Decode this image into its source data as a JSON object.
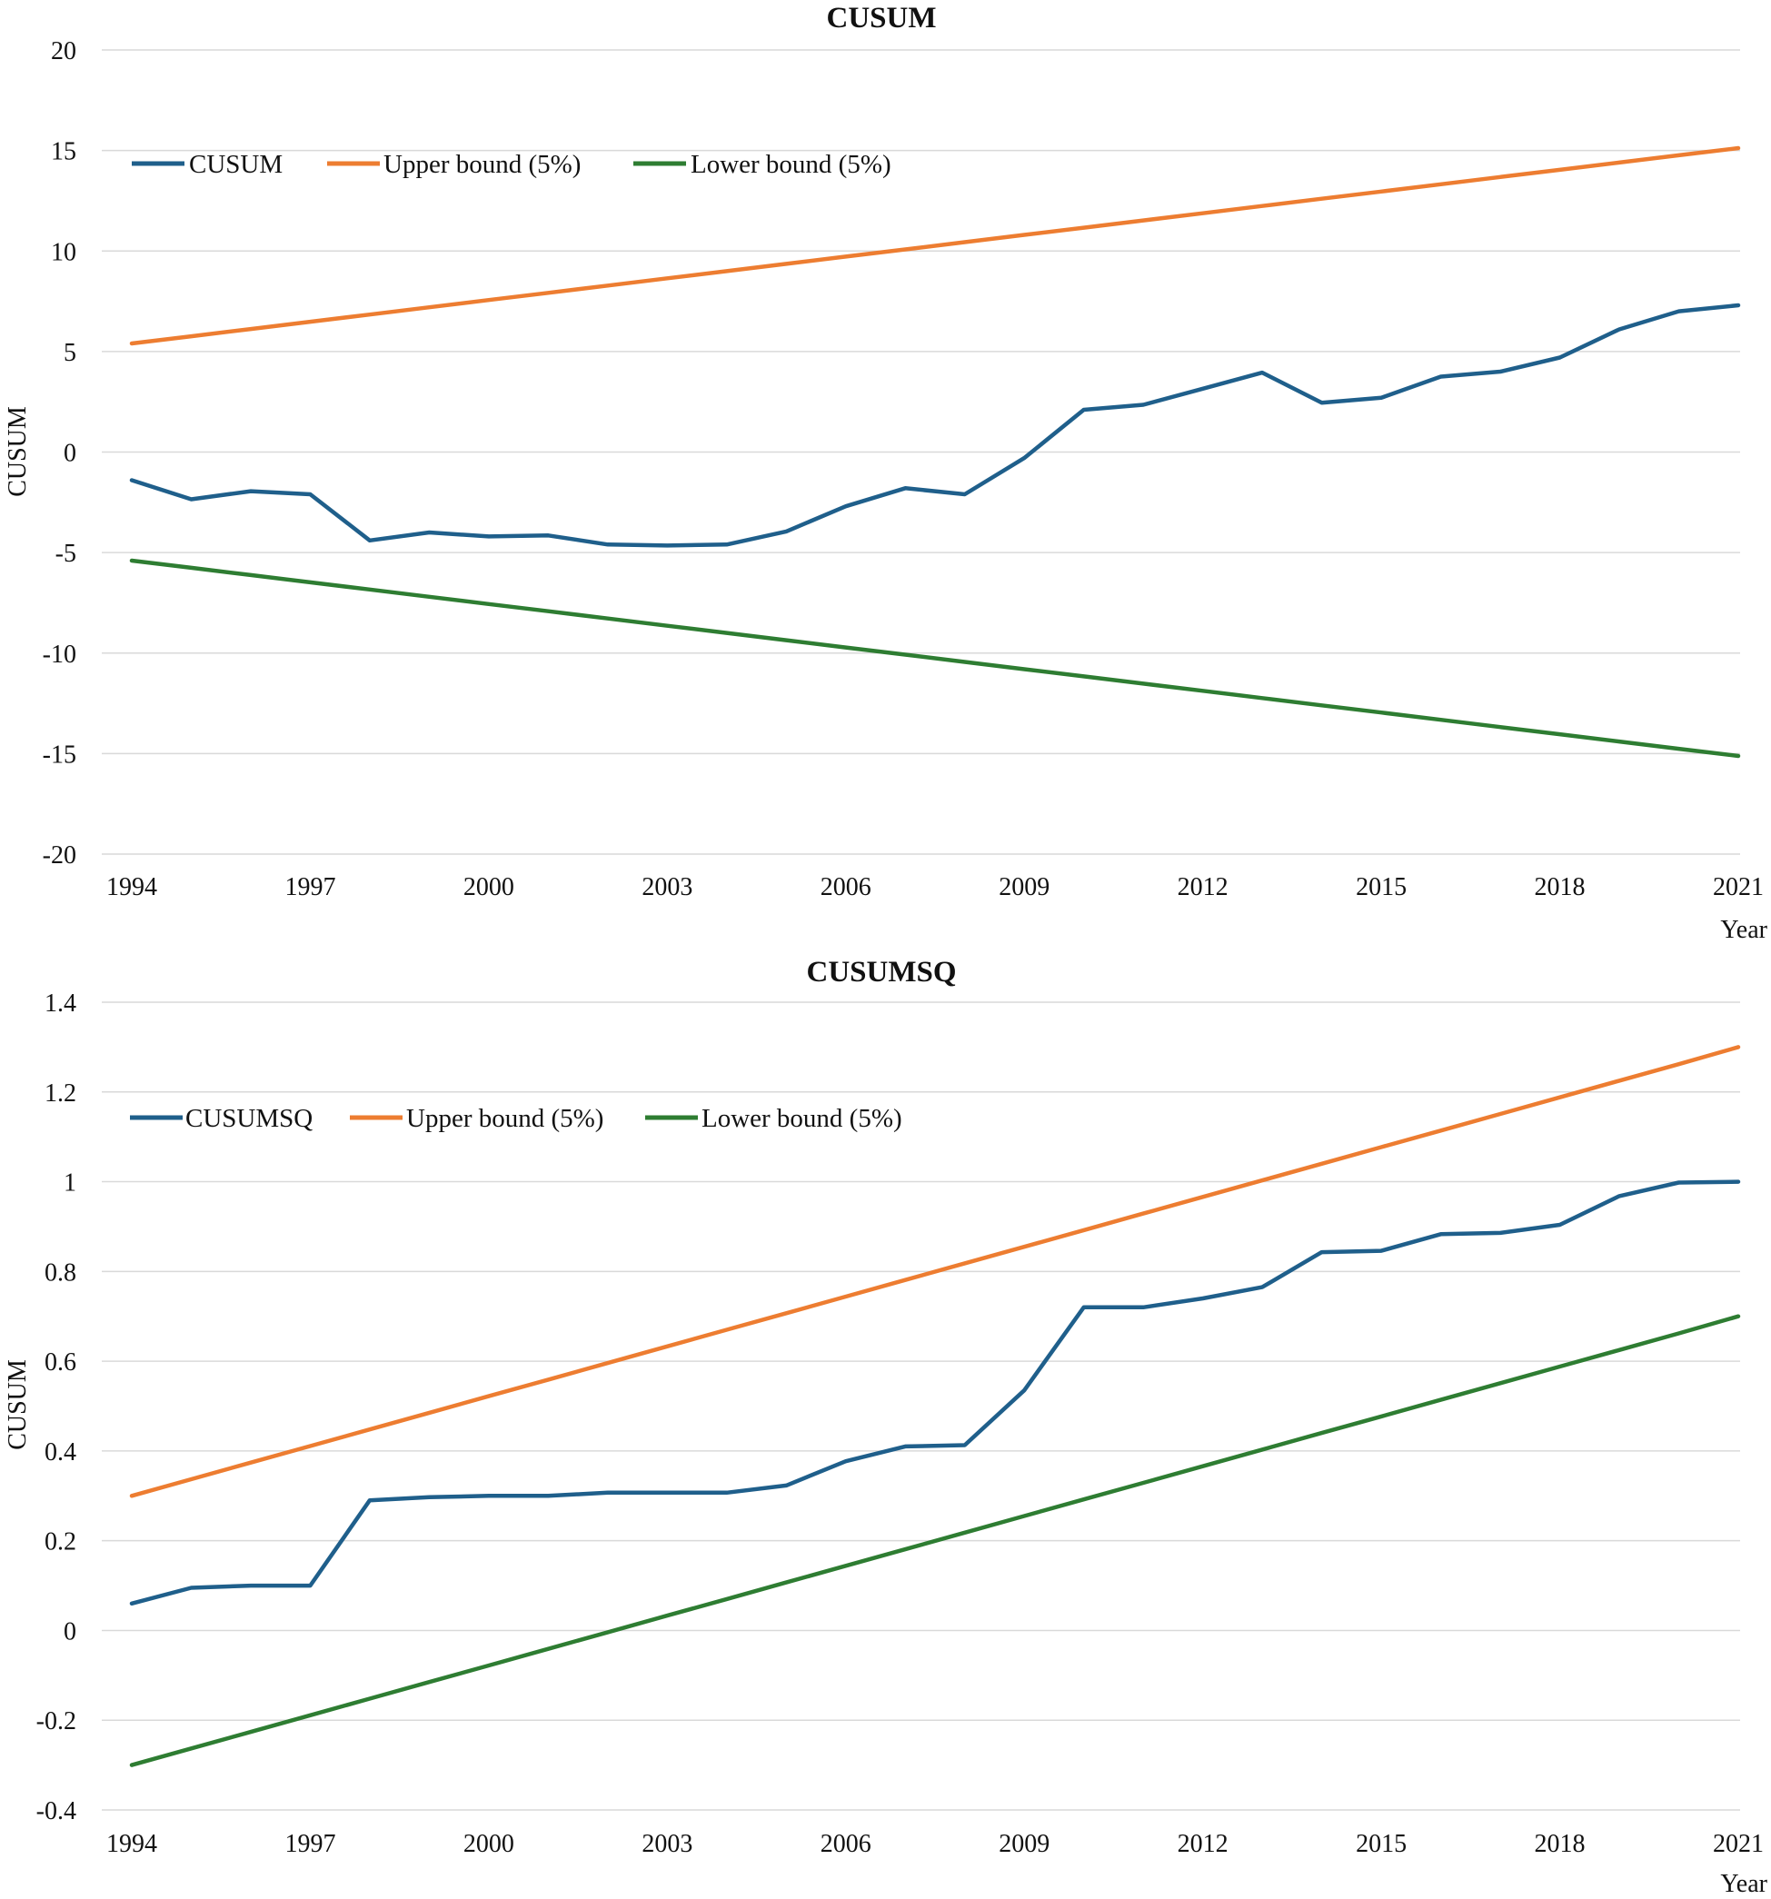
{
  "chart_data": [
    {
      "type": "line",
      "title": "CUSUM",
      "xlabel": "Year",
      "ylabel": "CUSUM",
      "x": [
        1994,
        1995,
        1996,
        1997,
        1998,
        1999,
        2000,
        2001,
        2002,
        2003,
        2004,
        2005,
        2006,
        2007,
        2008,
        2009,
        2010,
        2011,
        2012,
        2013,
        2014,
        2015,
        2016,
        2017,
        2018,
        2019,
        2020,
        2021
      ],
      "x_ticks": [
        "1994",
        "1997",
        "2000",
        "2003",
        "2006",
        "2009",
        "2012",
        "2015",
        "2018",
        "2021"
      ],
      "y_ticks": [
        "20",
        "15",
        "10",
        "5",
        "0",
        "-5",
        "-10",
        "-15",
        "-20"
      ],
      "ylim": [
        -20,
        20
      ],
      "grid": true,
      "legend_position": "top-left",
      "series": [
        {
          "name": "CUSUM",
          "color": "#1f5f8b",
          "values": [
            -1.4,
            -2.35,
            -1.95,
            -2.1,
            -4.4,
            -4.0,
            -4.2,
            -4.15,
            -4.6,
            -4.65,
            -4.6,
            -3.95,
            -2.7,
            -1.8,
            -2.1,
            -0.3,
            2.1,
            2.35,
            3.15,
            3.95,
            2.45,
            2.7,
            3.75,
            4.0,
            4.7,
            6.1,
            7.0,
            7.3
          ]
        },
        {
          "name": "Upper bound (5%)",
          "color": "#ed7d31",
          "values": [
            5.4,
            5.76,
            6.12,
            6.48,
            6.84,
            7.2,
            7.56,
            7.92,
            8.28,
            8.64,
            9.0,
            9.36,
            9.72,
            10.08,
            10.44,
            10.8,
            11.16,
            11.52,
            11.88,
            12.24,
            12.6,
            12.96,
            13.32,
            13.68,
            14.04,
            14.4,
            14.76,
            15.12
          ]
        },
        {
          "name": "Lower bound (5%)",
          "color": "#2e7d32",
          "values": [
            -5.4,
            -5.76,
            -6.12,
            -6.48,
            -6.84,
            -7.2,
            -7.56,
            -7.92,
            -8.28,
            -8.64,
            -9.0,
            -9.36,
            -9.72,
            -10.08,
            -10.44,
            -10.8,
            -11.16,
            -11.52,
            -11.88,
            -12.24,
            -12.6,
            -12.96,
            -13.32,
            -13.68,
            -14.04,
            -14.4,
            -14.76,
            -15.12
          ]
        }
      ]
    },
    {
      "type": "line",
      "title": "CUSUMSQ",
      "xlabel": "Year",
      "ylabel": "CUSUM",
      "x": [
        1994,
        1995,
        1996,
        1997,
        1998,
        1999,
        2000,
        2001,
        2002,
        2003,
        2004,
        2005,
        2006,
        2007,
        2008,
        2009,
        2010,
        2011,
        2012,
        2013,
        2014,
        2015,
        2016,
        2017,
        2018,
        2019,
        2020,
        2021
      ],
      "x_ticks": [
        "1994",
        "1997",
        "2000",
        "2003",
        "2006",
        "2009",
        "2012",
        "2015",
        "2018",
        "2021"
      ],
      "y_ticks": [
        "1.4",
        "1.2",
        "1",
        "0.8",
        "0.6",
        "0.4",
        "0.2",
        "0",
        "-0.2",
        "-0.4"
      ],
      "ylim": [
        -0.4,
        1.4
      ],
      "grid": true,
      "legend_position": "top-left",
      "series": [
        {
          "name": "CUSUMSQ",
          "color": "#1f5f8b",
          "values": [
            0.06,
            0.095,
            0.1,
            0.1,
            0.29,
            0.297,
            0.3,
            0.3,
            0.307,
            0.307,
            0.307,
            0.323,
            0.377,
            0.41,
            0.413,
            0.535,
            0.72,
            0.72,
            0.74,
            0.765,
            0.843,
            0.846,
            0.883,
            0.886,
            0.904,
            0.968,
            0.998,
            1.0
          ]
        },
        {
          "name": "Upper bound (5%)",
          "color": "#ed7d31",
          "values": [
            0.3,
            0.337,
            0.374,
            0.411,
            0.448,
            0.485,
            0.522,
            0.559,
            0.596,
            0.633,
            0.67,
            0.707,
            0.744,
            0.781,
            0.818,
            0.855,
            0.892,
            0.929,
            0.966,
            1.003,
            1.04,
            1.077,
            1.114,
            1.151,
            1.188,
            1.225,
            1.262,
            1.3
          ]
        },
        {
          "name": "Lower bound (5%)",
          "color": "#2e7d32",
          "values": [
            -0.3,
            -0.263,
            -0.226,
            -0.189,
            -0.152,
            -0.115,
            -0.078,
            -0.041,
            -0.004,
            0.033,
            0.07,
            0.107,
            0.144,
            0.181,
            0.218,
            0.255,
            0.292,
            0.329,
            0.366,
            0.403,
            0.44,
            0.477,
            0.514,
            0.551,
            0.588,
            0.625,
            0.662,
            0.7
          ]
        }
      ]
    }
  ]
}
